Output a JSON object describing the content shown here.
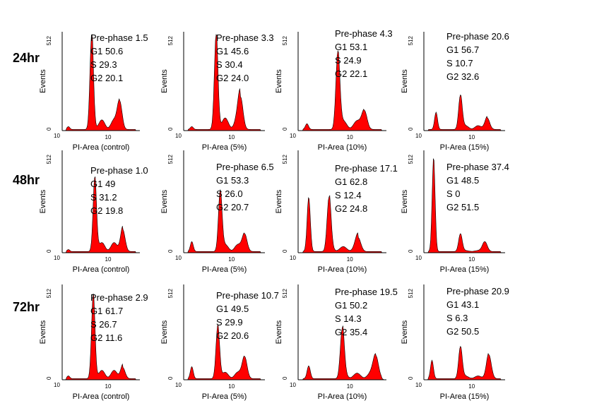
{
  "chart_data": {
    "type": "area",
    "rows": [
      {
        "label": "24hr",
        "panels": [
          {
            "xlabel": "PI-Area (control)",
            "ylabel": "Events",
            "ymax": "512",
            "ymin": "0",
            "x0": "10",
            "xmid": "10",
            "annotations": [
              "Pre-phase 1.5",
              "G1 50.6",
              "S 29.3",
              "G2 20.1"
            ]
          },
          {
            "xlabel": "PI-Area (5%)",
            "ylabel": "Events",
            "ymax": "512",
            "ymin": "0",
            "x0": "10",
            "xmid": "10",
            "annotations": [
              "Pre-phase 3.3",
              "G1 45.6",
              "S 30.4",
              "G2 24.0"
            ]
          },
          {
            "xlabel": "PI-Area (10%)",
            "ylabel": "Events",
            "ymax": "512",
            "ymin": "0",
            "x0": "10",
            "xmid": "10",
            "annotations": [
              "Pre-phase 4.3",
              "G1 53.1",
              "S 24.9",
              "G2 22.1"
            ]
          },
          {
            "xlabel": "PI-Area (15%)",
            "ylabel": "Events",
            "ymax": "512",
            "ymin": "0",
            "x0": "10",
            "xmid": "10",
            "annotations": [
              "Pre-phase 20.6",
              "G1 56.7",
              "S 10.7",
              "G2 32.6"
            ]
          }
        ]
      },
      {
        "label": "48hr",
        "panels": [
          {
            "xlabel": "PI-Area (control)",
            "ylabel": "Events",
            "ymax": "512",
            "ymin": "0",
            "x0": "10",
            "xmid": "10",
            "annotations": [
              "Pre-phase 1.0",
              "G1 49",
              "S 31.2",
              "G2 19.8"
            ]
          },
          {
            "xlabel": "PI-Area (5%)",
            "ylabel": "Events",
            "ymax": "512",
            "ymin": "0",
            "x0": "10",
            "xmid": "10",
            "annotations": [
              "Pre-phase 6.5",
              "G1 53.3",
              "S 26.0",
              "G2 20.7"
            ]
          },
          {
            "xlabel": "PI-Area (10%)",
            "ylabel": "Events",
            "ymax": "512",
            "ymin": "0",
            "x0": "10",
            "xmid": "10",
            "annotations": [
              "Pre-phase 17.1",
              "G1 62.8",
              "S 12.4",
              "G2 24.8"
            ]
          },
          {
            "xlabel": "PI-Area (15%)",
            "ylabel": "Events",
            "ymax": "512",
            "ymin": "0",
            "x0": "10",
            "xmid": "10",
            "annotations": [
              "Pre-phase 37.4",
              "G1 48.5",
              "S 0",
              "G2 51.5"
            ]
          }
        ]
      },
      {
        "label": "72hr",
        "panels": [
          {
            "xlabel": "PI-Area (control)",
            "ylabel": "Events",
            "ymax": "512",
            "ymin": "0",
            "x0": "10",
            "xmid": "10",
            "annotations": [
              "Pre-phase 2.9",
              "G1 61.7",
              "S 26.7",
              "G2 11.6"
            ]
          },
          {
            "xlabel": "PI-Area (5%)",
            "ylabel": "Events",
            "ymax": "512",
            "ymin": "0",
            "x0": "10",
            "xmid": "10",
            "annotations": [
              "Pre-phase 10.7",
              "G1 49.5",
              "S 29.9",
              "G2 20.6"
            ]
          },
          {
            "xlabel": "PI-Area (10%)",
            "ylabel": "Events",
            "ymax": "512",
            "ymin": "0",
            "x0": "10",
            "xmid": "10",
            "annotations": [
              "Pre-phase 19.5",
              "G1 50.2",
              "S 14.3",
              "G2 35.4"
            ]
          },
          {
            "xlabel": "PI-Area (15%)",
            "ylabel": "Events",
            "ymax": "512",
            "ymin": "0",
            "x0": "10",
            "xmid": "10",
            "annotations": [
              "Pre-phase 20.9",
              "G1 43.1",
              "S 6.3",
              "G2 50.5"
            ]
          }
        ]
      }
    ],
    "fill_color": "#ff0000",
    "grid": false
  }
}
